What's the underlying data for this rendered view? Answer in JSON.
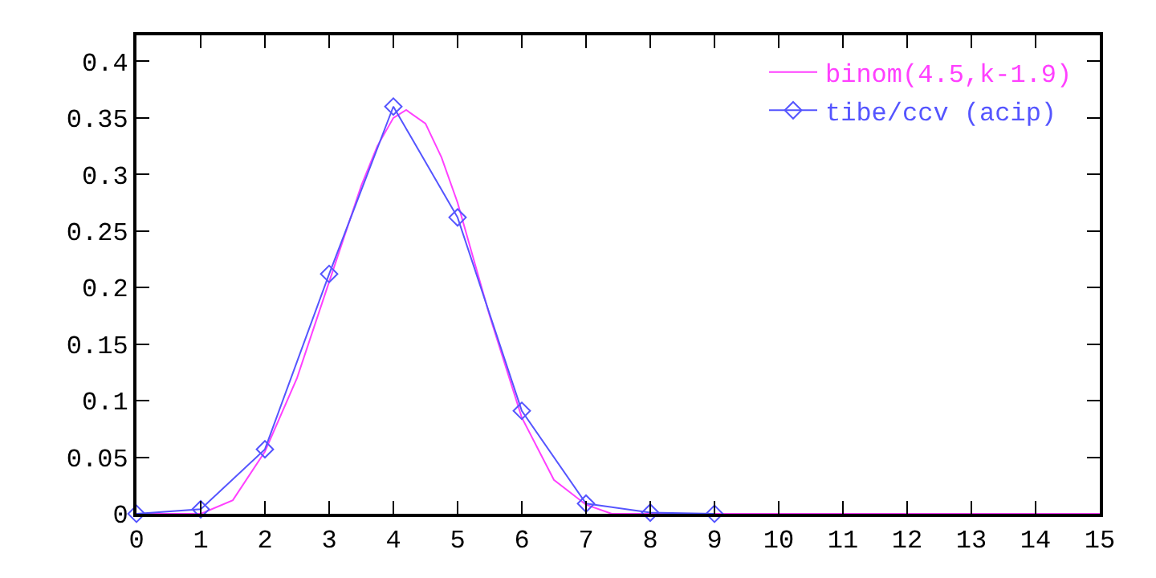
{
  "chart_data": {
    "type": "line",
    "xlim": [
      0,
      15
    ],
    "ylim": [
      0,
      0.423
    ],
    "xticks": [
      0,
      1,
      2,
      3,
      4,
      5,
      6,
      7,
      8,
      9,
      10,
      11,
      12,
      13,
      14,
      15
    ],
    "yticks": [
      0,
      0.05,
      0.1,
      0.15,
      0.2,
      0.25,
      0.3,
      0.35,
      0.4
    ],
    "legend": "top right",
    "series": [
      {
        "name": "binom(4.5,k-1.9)",
        "color": "#ff40ff",
        "marker": "none",
        "x": [
          0,
          1,
          1.5,
          2,
          2.5,
          3,
          3.5,
          3.75,
          4,
          4.2,
          4.5,
          4.75,
          5,
          5.5,
          6,
          6.5,
          7,
          7.4,
          15
        ],
        "values": [
          0,
          0,
          0.012,
          0.055,
          0.12,
          0.205,
          0.29,
          0.325,
          0.35,
          0.357,
          0.345,
          0.315,
          0.275,
          0.175,
          0.085,
          0.03,
          0.008,
          0,
          0
        ]
      },
      {
        "name": "tibe/ccv (acip)",
        "color": "#5555ff",
        "marker": "diamond",
        "x": [
          0,
          1,
          2,
          3,
          4,
          5,
          6,
          7,
          8,
          9
        ],
        "values": [
          0,
          0.004,
          0.057,
          0.212,
          0.36,
          0.262,
          0.091,
          0.009,
          0.001,
          0
        ]
      }
    ]
  }
}
